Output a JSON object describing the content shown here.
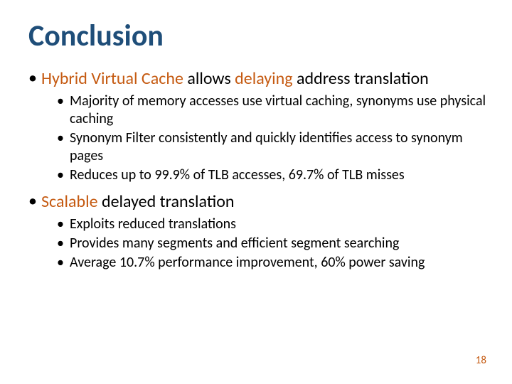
{
  "slide": {
    "title": "Conclusion",
    "title_color": "#1f4e79",
    "accent_color": "#c55a11",
    "body_color": "#000000",
    "background_color": "#ffffff",
    "title_fontsize": 42,
    "l1_fontsize": 24,
    "l2_fontsize": 20,
    "page_number": "18",
    "bullets": [
      {
        "runs": [
          {
            "text": "Hybrid Virtual Cache",
            "accent": true
          },
          {
            "text": " allows ",
            "accent": false
          },
          {
            "text": "delaying",
            "accent": true
          },
          {
            "text": " address translation",
            "accent": false
          }
        ],
        "sub": [
          "Majority of memory accesses use virtual caching, synonyms use physical caching",
          "Synonym Filter consistently and quickly identifies access to synonym pages",
          "Reduces up to 99.9% of TLB accesses, 69.7% of TLB misses"
        ]
      },
      {
        "runs": [
          {
            "text": "Scalable",
            "accent": true
          },
          {
            "text": " delayed translation",
            "accent": false
          }
        ],
        "sub": [
          "Exploits reduced translations",
          "Provides many segments and efficient segment searching",
          "Average 10.7% performance improvement, 60% power saving"
        ]
      }
    ]
  }
}
